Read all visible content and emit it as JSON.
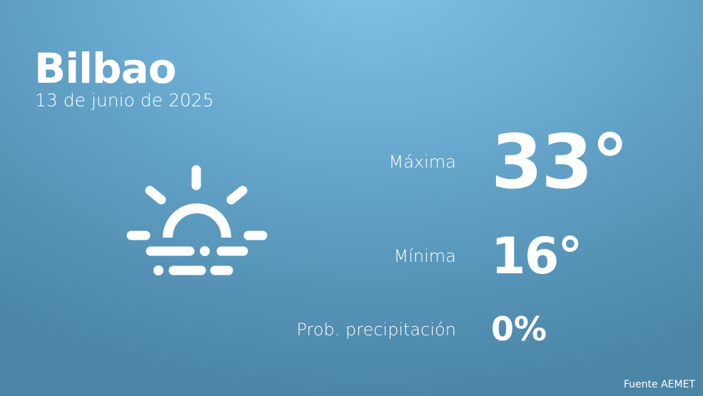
{
  "city": "Bilbao",
  "date": "13 de junio de 2025",
  "icon": "sun-with-fog-icon",
  "max": {
    "label": "Máxima",
    "value": "33°"
  },
  "min": {
    "label": "Mínima",
    "value": "16°"
  },
  "precip": {
    "label": "Prob. precipitación",
    "value": "0%"
  },
  "source": "Fuente AEMET"
}
